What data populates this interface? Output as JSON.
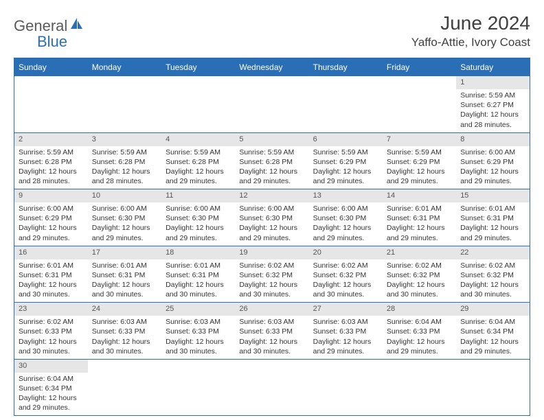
{
  "brand": {
    "textA": "General",
    "textB": "Blue"
  },
  "title": "June 2024",
  "location": "Yaffo-Attie, Ivory Coast",
  "colors": {
    "header_bg": "#2a6fb5",
    "header_text": "#ffffff",
    "daynum_bg": "#e6e6e6",
    "border": "#2a6fb5",
    "body_bg": "#ffffff",
    "text": "#333333"
  },
  "weekdays": [
    "Sunday",
    "Monday",
    "Tuesday",
    "Wednesday",
    "Thursday",
    "Friday",
    "Saturday"
  ],
  "weeks": [
    [
      null,
      null,
      null,
      null,
      null,
      null,
      {
        "n": "1",
        "sunrise": "Sunrise: 5:59 AM",
        "sunset": "Sunset: 6:27 PM",
        "daylight": "Daylight: 12 hours and 28 minutes."
      }
    ],
    [
      {
        "n": "2",
        "sunrise": "Sunrise: 5:59 AM",
        "sunset": "Sunset: 6:28 PM",
        "daylight": "Daylight: 12 hours and 28 minutes."
      },
      {
        "n": "3",
        "sunrise": "Sunrise: 5:59 AM",
        "sunset": "Sunset: 6:28 PM",
        "daylight": "Daylight: 12 hours and 28 minutes."
      },
      {
        "n": "4",
        "sunrise": "Sunrise: 5:59 AM",
        "sunset": "Sunset: 6:28 PM",
        "daylight": "Daylight: 12 hours and 29 minutes."
      },
      {
        "n": "5",
        "sunrise": "Sunrise: 5:59 AM",
        "sunset": "Sunset: 6:28 PM",
        "daylight": "Daylight: 12 hours and 29 minutes."
      },
      {
        "n": "6",
        "sunrise": "Sunrise: 5:59 AM",
        "sunset": "Sunset: 6:29 PM",
        "daylight": "Daylight: 12 hours and 29 minutes."
      },
      {
        "n": "7",
        "sunrise": "Sunrise: 5:59 AM",
        "sunset": "Sunset: 6:29 PM",
        "daylight": "Daylight: 12 hours and 29 minutes."
      },
      {
        "n": "8",
        "sunrise": "Sunrise: 6:00 AM",
        "sunset": "Sunset: 6:29 PM",
        "daylight": "Daylight: 12 hours and 29 minutes."
      }
    ],
    [
      {
        "n": "9",
        "sunrise": "Sunrise: 6:00 AM",
        "sunset": "Sunset: 6:29 PM",
        "daylight": "Daylight: 12 hours and 29 minutes."
      },
      {
        "n": "10",
        "sunrise": "Sunrise: 6:00 AM",
        "sunset": "Sunset: 6:30 PM",
        "daylight": "Daylight: 12 hours and 29 minutes."
      },
      {
        "n": "11",
        "sunrise": "Sunrise: 6:00 AM",
        "sunset": "Sunset: 6:30 PM",
        "daylight": "Daylight: 12 hours and 29 minutes."
      },
      {
        "n": "12",
        "sunrise": "Sunrise: 6:00 AM",
        "sunset": "Sunset: 6:30 PM",
        "daylight": "Daylight: 12 hours and 29 minutes."
      },
      {
        "n": "13",
        "sunrise": "Sunrise: 6:00 AM",
        "sunset": "Sunset: 6:30 PM",
        "daylight": "Daylight: 12 hours and 29 minutes."
      },
      {
        "n": "14",
        "sunrise": "Sunrise: 6:01 AM",
        "sunset": "Sunset: 6:31 PM",
        "daylight": "Daylight: 12 hours and 29 minutes."
      },
      {
        "n": "15",
        "sunrise": "Sunrise: 6:01 AM",
        "sunset": "Sunset: 6:31 PM",
        "daylight": "Daylight: 12 hours and 29 minutes."
      }
    ],
    [
      {
        "n": "16",
        "sunrise": "Sunrise: 6:01 AM",
        "sunset": "Sunset: 6:31 PM",
        "daylight": "Daylight: 12 hours and 30 minutes."
      },
      {
        "n": "17",
        "sunrise": "Sunrise: 6:01 AM",
        "sunset": "Sunset: 6:31 PM",
        "daylight": "Daylight: 12 hours and 30 minutes."
      },
      {
        "n": "18",
        "sunrise": "Sunrise: 6:01 AM",
        "sunset": "Sunset: 6:31 PM",
        "daylight": "Daylight: 12 hours and 30 minutes."
      },
      {
        "n": "19",
        "sunrise": "Sunrise: 6:02 AM",
        "sunset": "Sunset: 6:32 PM",
        "daylight": "Daylight: 12 hours and 30 minutes."
      },
      {
        "n": "20",
        "sunrise": "Sunrise: 6:02 AM",
        "sunset": "Sunset: 6:32 PM",
        "daylight": "Daylight: 12 hours and 30 minutes."
      },
      {
        "n": "21",
        "sunrise": "Sunrise: 6:02 AM",
        "sunset": "Sunset: 6:32 PM",
        "daylight": "Daylight: 12 hours and 30 minutes."
      },
      {
        "n": "22",
        "sunrise": "Sunrise: 6:02 AM",
        "sunset": "Sunset: 6:32 PM",
        "daylight": "Daylight: 12 hours and 30 minutes."
      }
    ],
    [
      {
        "n": "23",
        "sunrise": "Sunrise: 6:02 AM",
        "sunset": "Sunset: 6:33 PM",
        "daylight": "Daylight: 12 hours and 30 minutes."
      },
      {
        "n": "24",
        "sunrise": "Sunrise: 6:03 AM",
        "sunset": "Sunset: 6:33 PM",
        "daylight": "Daylight: 12 hours and 30 minutes."
      },
      {
        "n": "25",
        "sunrise": "Sunrise: 6:03 AM",
        "sunset": "Sunset: 6:33 PM",
        "daylight": "Daylight: 12 hours and 30 minutes."
      },
      {
        "n": "26",
        "sunrise": "Sunrise: 6:03 AM",
        "sunset": "Sunset: 6:33 PM",
        "daylight": "Daylight: 12 hours and 30 minutes."
      },
      {
        "n": "27",
        "sunrise": "Sunrise: 6:03 AM",
        "sunset": "Sunset: 6:33 PM",
        "daylight": "Daylight: 12 hours and 29 minutes."
      },
      {
        "n": "28",
        "sunrise": "Sunrise: 6:04 AM",
        "sunset": "Sunset: 6:33 PM",
        "daylight": "Daylight: 12 hours and 29 minutes."
      },
      {
        "n": "29",
        "sunrise": "Sunrise: 6:04 AM",
        "sunset": "Sunset: 6:34 PM",
        "daylight": "Daylight: 12 hours and 29 minutes."
      }
    ],
    [
      {
        "n": "30",
        "sunrise": "Sunrise: 6:04 AM",
        "sunset": "Sunset: 6:34 PM",
        "daylight": "Daylight: 12 hours and 29 minutes."
      },
      null,
      null,
      null,
      null,
      null,
      null
    ]
  ]
}
